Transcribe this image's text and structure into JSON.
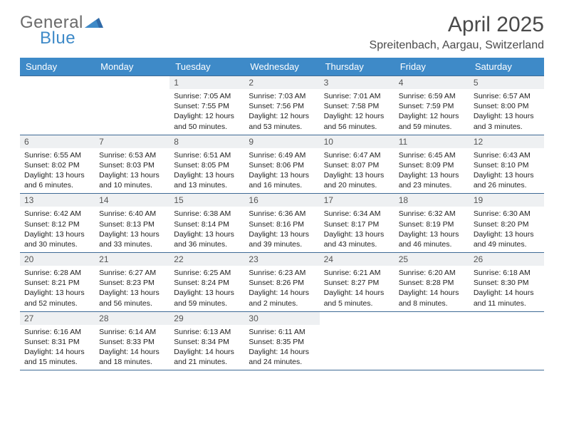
{
  "logo": {
    "word1": "General",
    "word2": "Blue"
  },
  "title": "April 2025",
  "subtitle": "Spreitenbach, Aargau, Switzerland",
  "colors": {
    "header_bg": "#3e8ac8",
    "header_text": "#ffffff",
    "row_border": "#3e6a95",
    "daynum_bg": "#eef0f2",
    "logo_gray": "#6a6a6a",
    "logo_blue": "#3e8ac8",
    "title_color": "#4a4a4a"
  },
  "weekdays": [
    "Sunday",
    "Monday",
    "Tuesday",
    "Wednesday",
    "Thursday",
    "Friday",
    "Saturday"
  ],
  "weeks": [
    [
      null,
      null,
      {
        "n": "1",
        "r": "Sunrise: 7:05 AM",
        "s": "Sunset: 7:55 PM",
        "d": "Daylight: 12 hours and 50 minutes."
      },
      {
        "n": "2",
        "r": "Sunrise: 7:03 AM",
        "s": "Sunset: 7:56 PM",
        "d": "Daylight: 12 hours and 53 minutes."
      },
      {
        "n": "3",
        "r": "Sunrise: 7:01 AM",
        "s": "Sunset: 7:58 PM",
        "d": "Daylight: 12 hours and 56 minutes."
      },
      {
        "n": "4",
        "r": "Sunrise: 6:59 AM",
        "s": "Sunset: 7:59 PM",
        "d": "Daylight: 12 hours and 59 minutes."
      },
      {
        "n": "5",
        "r": "Sunrise: 6:57 AM",
        "s": "Sunset: 8:00 PM",
        "d": "Daylight: 13 hours and 3 minutes."
      }
    ],
    [
      {
        "n": "6",
        "r": "Sunrise: 6:55 AM",
        "s": "Sunset: 8:02 PM",
        "d": "Daylight: 13 hours and 6 minutes."
      },
      {
        "n": "7",
        "r": "Sunrise: 6:53 AM",
        "s": "Sunset: 8:03 PM",
        "d": "Daylight: 13 hours and 10 minutes."
      },
      {
        "n": "8",
        "r": "Sunrise: 6:51 AM",
        "s": "Sunset: 8:05 PM",
        "d": "Daylight: 13 hours and 13 minutes."
      },
      {
        "n": "9",
        "r": "Sunrise: 6:49 AM",
        "s": "Sunset: 8:06 PM",
        "d": "Daylight: 13 hours and 16 minutes."
      },
      {
        "n": "10",
        "r": "Sunrise: 6:47 AM",
        "s": "Sunset: 8:07 PM",
        "d": "Daylight: 13 hours and 20 minutes."
      },
      {
        "n": "11",
        "r": "Sunrise: 6:45 AM",
        "s": "Sunset: 8:09 PM",
        "d": "Daylight: 13 hours and 23 minutes."
      },
      {
        "n": "12",
        "r": "Sunrise: 6:43 AM",
        "s": "Sunset: 8:10 PM",
        "d": "Daylight: 13 hours and 26 minutes."
      }
    ],
    [
      {
        "n": "13",
        "r": "Sunrise: 6:42 AM",
        "s": "Sunset: 8:12 PM",
        "d": "Daylight: 13 hours and 30 minutes."
      },
      {
        "n": "14",
        "r": "Sunrise: 6:40 AM",
        "s": "Sunset: 8:13 PM",
        "d": "Daylight: 13 hours and 33 minutes."
      },
      {
        "n": "15",
        "r": "Sunrise: 6:38 AM",
        "s": "Sunset: 8:14 PM",
        "d": "Daylight: 13 hours and 36 minutes."
      },
      {
        "n": "16",
        "r": "Sunrise: 6:36 AM",
        "s": "Sunset: 8:16 PM",
        "d": "Daylight: 13 hours and 39 minutes."
      },
      {
        "n": "17",
        "r": "Sunrise: 6:34 AM",
        "s": "Sunset: 8:17 PM",
        "d": "Daylight: 13 hours and 43 minutes."
      },
      {
        "n": "18",
        "r": "Sunrise: 6:32 AM",
        "s": "Sunset: 8:19 PM",
        "d": "Daylight: 13 hours and 46 minutes."
      },
      {
        "n": "19",
        "r": "Sunrise: 6:30 AM",
        "s": "Sunset: 8:20 PM",
        "d": "Daylight: 13 hours and 49 minutes."
      }
    ],
    [
      {
        "n": "20",
        "r": "Sunrise: 6:28 AM",
        "s": "Sunset: 8:21 PM",
        "d": "Daylight: 13 hours and 52 minutes."
      },
      {
        "n": "21",
        "r": "Sunrise: 6:27 AM",
        "s": "Sunset: 8:23 PM",
        "d": "Daylight: 13 hours and 56 minutes."
      },
      {
        "n": "22",
        "r": "Sunrise: 6:25 AM",
        "s": "Sunset: 8:24 PM",
        "d": "Daylight: 13 hours and 59 minutes."
      },
      {
        "n": "23",
        "r": "Sunrise: 6:23 AM",
        "s": "Sunset: 8:26 PM",
        "d": "Daylight: 14 hours and 2 minutes."
      },
      {
        "n": "24",
        "r": "Sunrise: 6:21 AM",
        "s": "Sunset: 8:27 PM",
        "d": "Daylight: 14 hours and 5 minutes."
      },
      {
        "n": "25",
        "r": "Sunrise: 6:20 AM",
        "s": "Sunset: 8:28 PM",
        "d": "Daylight: 14 hours and 8 minutes."
      },
      {
        "n": "26",
        "r": "Sunrise: 6:18 AM",
        "s": "Sunset: 8:30 PM",
        "d": "Daylight: 14 hours and 11 minutes."
      }
    ],
    [
      {
        "n": "27",
        "r": "Sunrise: 6:16 AM",
        "s": "Sunset: 8:31 PM",
        "d": "Daylight: 14 hours and 15 minutes."
      },
      {
        "n": "28",
        "r": "Sunrise: 6:14 AM",
        "s": "Sunset: 8:33 PM",
        "d": "Daylight: 14 hours and 18 minutes."
      },
      {
        "n": "29",
        "r": "Sunrise: 6:13 AM",
        "s": "Sunset: 8:34 PM",
        "d": "Daylight: 14 hours and 21 minutes."
      },
      {
        "n": "30",
        "r": "Sunrise: 6:11 AM",
        "s": "Sunset: 8:35 PM",
        "d": "Daylight: 14 hours and 24 minutes."
      },
      null,
      null,
      null
    ]
  ]
}
